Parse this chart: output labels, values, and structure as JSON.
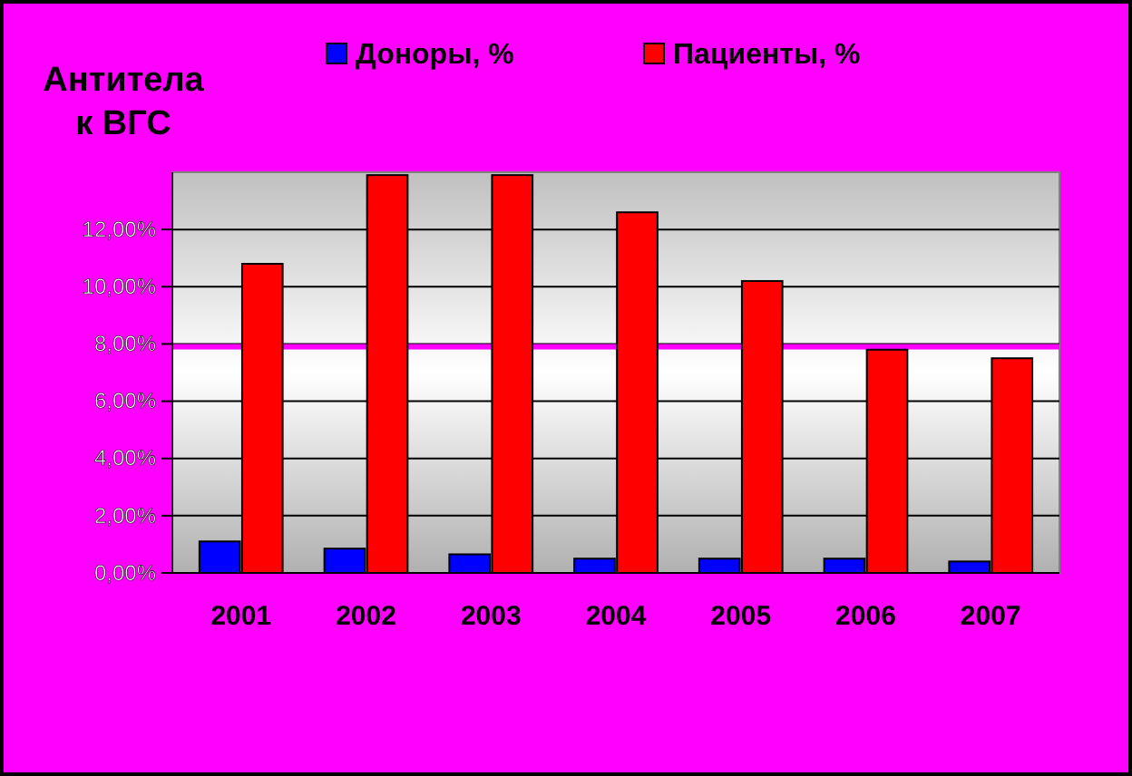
{
  "chart_data": {
    "type": "bar",
    "title": "Антитела к ВГС",
    "categories": [
      "2001",
      "2002",
      "2003",
      "2004",
      "2005",
      "2006",
      "2007"
    ],
    "series": [
      {
        "name": "Доноры, %",
        "color": "#0000ff",
        "values": [
          1.1,
          0.85,
          0.65,
          0.5,
          0.5,
          0.5,
          0.4
        ]
      },
      {
        "name": "Пациенты, %",
        "color": "#ff0000",
        "values": [
          10.8,
          13.9,
          13.9,
          12.6,
          10.2,
          7.8,
          7.5
        ]
      }
    ],
    "ylim": [
      0,
      14
    ],
    "yticks": [
      {
        "value": 0,
        "label": "0,00%"
      },
      {
        "value": 2,
        "label": "2,00%"
      },
      {
        "value": 4,
        "label": "4,00%"
      },
      {
        "value": 6,
        "label": "6,00%"
      },
      {
        "value": 8,
        "label": "8,00%"
      },
      {
        "value": 10,
        "label": "10,00%"
      },
      {
        "value": 12,
        "label": "12,00%"
      }
    ],
    "grid": "y",
    "legend": "top",
    "ref_lines": [
      {
        "axis": "y",
        "value": 7.9,
        "color": "#ff00ff"
      }
    ]
  }
}
